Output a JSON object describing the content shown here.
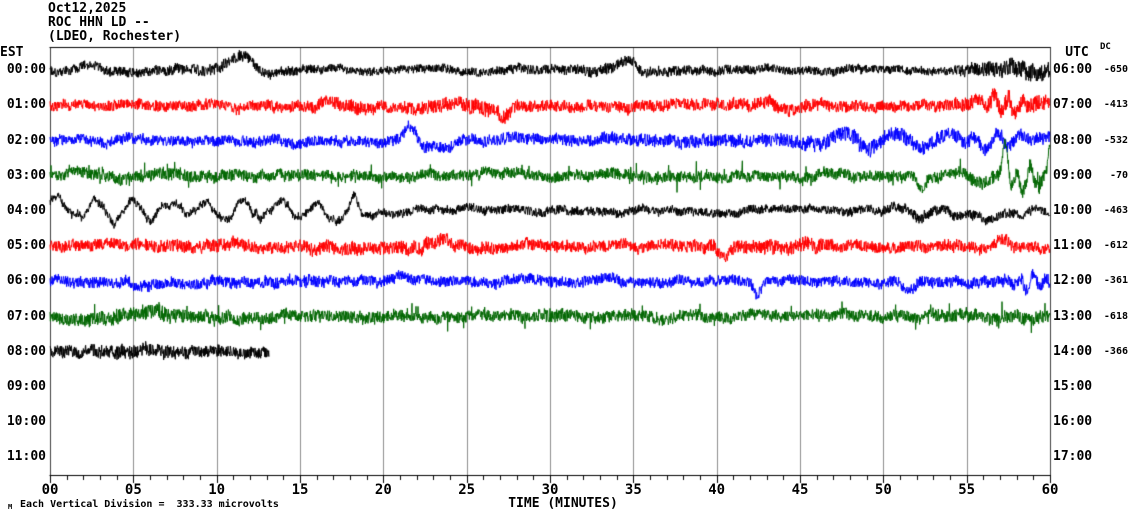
{
  "header": {
    "date": "Oct12,2025",
    "station": "ROC HHN LD --",
    "location": "(LDEO, Rochester)"
  },
  "axes": {
    "left_title": "EST",
    "right_title": "UTC",
    "dc_title": "DC",
    "x_title": "TIME (MINUTES)",
    "x_tick_labels": [
      "00",
      "05",
      "10",
      "15",
      "20",
      "25",
      "30",
      "35",
      "40",
      "45",
      "50",
      "55",
      "60"
    ]
  },
  "footer": {
    "scale_note": "Each Vertical Division =  333.33 microvolts",
    "watermark": "M"
  },
  "colors": {
    "black": "#000000",
    "red": "#ff0000",
    "blue": "#0000ff",
    "green": "#006600",
    "grid": "#8c8c8c",
    "frame": "#3c3c3c",
    "axis": "#000000"
  },
  "chart_data": {
    "type": "line",
    "subtype": "helicorder-seismogram",
    "title": "ROC HHN LD -- (LDEO, Rochester) Oct12,2025",
    "x_axis": {
      "label": "TIME (MINUTES)",
      "min": 0,
      "max": 60,
      "major_tick": 5,
      "minor_tick": 1
    },
    "vertical_division_microvolts": 333.33,
    "hour_rows": [
      {
        "est": "00:00",
        "utc": "06:00",
        "dc": "-650",
        "has_trace": true
      },
      {
        "est": "01:00",
        "utc": "07:00",
        "dc": "-413",
        "has_trace": true
      },
      {
        "est": "02:00",
        "utc": "08:00",
        "dc": "-532",
        "has_trace": true
      },
      {
        "est": "03:00",
        "utc": "09:00",
        "dc": "-70",
        "has_trace": true
      },
      {
        "est": "04:00",
        "utc": "10:00",
        "dc": "-463",
        "has_trace": true
      },
      {
        "est": "05:00",
        "utc": "11:00",
        "dc": "-612",
        "has_trace": true
      },
      {
        "est": "06:00",
        "utc": "12:00",
        "dc": "-361",
        "has_trace": true
      },
      {
        "est": "07:00",
        "utc": "13:00",
        "dc": "-618",
        "has_trace": true
      },
      {
        "est": "08:00",
        "utc": "14:00",
        "dc": "-366",
        "has_trace": true
      },
      {
        "est": "09:00",
        "utc": "15:00",
        "dc": "",
        "has_trace": false
      },
      {
        "est": "10:00",
        "utc": "16:00",
        "dc": "",
        "has_trace": false
      },
      {
        "est": "11:00",
        "utc": "17:00",
        "dc": "",
        "has_trace": false
      }
    ],
    "traces": [
      {
        "row": 0,
        "color": "black",
        "start_min": 0,
        "end_min": 60,
        "seed": 101,
        "envelope": [
          [
            0,
            4.5
          ],
          [
            8,
            5
          ],
          [
            10,
            6
          ],
          [
            12.5,
            5
          ],
          [
            20,
            4
          ],
          [
            30,
            4.5
          ],
          [
            33,
            5.5
          ],
          [
            36,
            5
          ],
          [
            45,
            4
          ],
          [
            54,
            4.5
          ],
          [
            56.5,
            8
          ],
          [
            58,
            9
          ],
          [
            60,
            8
          ]
        ],
        "events": [
          {
            "type": "pulse",
            "min": 2.3,
            "amp": 6,
            "width": 0.8
          },
          {
            "type": "pulse",
            "min": 11.4,
            "amp": 15,
            "width": 0.9
          },
          {
            "type": "pulse",
            "min": 12.8,
            "amp": -6,
            "width": 0.6
          },
          {
            "type": "pulse",
            "min": 34.6,
            "amp": 12,
            "width": 0.8
          },
          {
            "type": "pulse",
            "min": 35.6,
            "amp": -5,
            "width": 0.5
          },
          {
            "type": "pulse",
            "min": 57.6,
            "amp": 6,
            "width": 0.8
          }
        ]
      },
      {
        "row": 1,
        "color": "red",
        "start_min": 0,
        "end_min": 60,
        "seed": 202,
        "envelope": [
          [
            0,
            5
          ],
          [
            14,
            5.5
          ],
          [
            17,
            6.5
          ],
          [
            21,
            6
          ],
          [
            24,
            6.5
          ],
          [
            26.5,
            7.5
          ],
          [
            28,
            6
          ],
          [
            33,
            5.5
          ],
          [
            40,
            5.5
          ],
          [
            43,
            6.5
          ],
          [
            47,
            6
          ],
          [
            52,
            5
          ],
          [
            55.5,
            7.5
          ],
          [
            57.5,
            8.5
          ],
          [
            60,
            7.5
          ]
        ],
        "events": [
          {
            "type": "pulse",
            "min": 16.8,
            "amp": 7,
            "width": 0.7
          },
          {
            "type": "pulse",
            "min": 27.3,
            "amp": -11,
            "width": 0.5
          },
          {
            "type": "pulse",
            "min": 44.5,
            "amp": -6,
            "width": 0.6
          },
          {
            "type": "osc",
            "min": 57.3,
            "amp": 9,
            "width": 1.3,
            "period": 0.9
          }
        ]
      },
      {
        "row": 2,
        "color": "blue",
        "start_min": 0,
        "end_min": 60,
        "seed": 303,
        "envelope": [
          [
            0,
            5
          ],
          [
            15,
            5
          ],
          [
            20,
            5.5
          ],
          [
            25,
            5.5
          ],
          [
            32,
            5.5
          ],
          [
            36,
            6.5
          ],
          [
            40,
            6
          ],
          [
            44,
            6.5
          ],
          [
            48,
            7.5
          ],
          [
            52,
            7
          ],
          [
            56,
            6.5
          ],
          [
            60,
            6
          ]
        ],
        "events": [
          {
            "type": "pulse",
            "min": 21.6,
            "amp": 16,
            "width": 0.45
          },
          {
            "type": "pulse",
            "min": 22.6,
            "amp": -5,
            "width": 0.5
          },
          {
            "type": "pulse",
            "min": 23.8,
            "amp": -7,
            "width": 0.7
          },
          {
            "type": "osc",
            "min": 50,
            "amp": 8,
            "width": 4.5,
            "period": 3.2
          },
          {
            "type": "osc",
            "min": 56.5,
            "amp": 9,
            "width": 1.8,
            "period": 1.4
          }
        ]
      },
      {
        "row": 3,
        "color": "green",
        "start_min": 0,
        "end_min": 60,
        "seed": 404,
        "spiky": true,
        "envelope": [
          [
            0,
            5
          ],
          [
            3,
            6
          ],
          [
            7,
            6.5
          ],
          [
            12,
            5.5
          ],
          [
            25,
            5
          ],
          [
            35,
            5.5
          ],
          [
            45,
            5.5
          ],
          [
            52,
            5.5
          ],
          [
            56,
            6
          ],
          [
            58,
            7
          ],
          [
            60,
            7
          ]
        ],
        "events": [
          {
            "type": "pulse",
            "min": 52.3,
            "amp": -12,
            "width": 0.35
          },
          {
            "type": "pulse",
            "min": 55.8,
            "amp": -8,
            "width": 0.6
          },
          {
            "type": "pulse",
            "min": 57.35,
            "amp": 38,
            "width": 0.22
          },
          {
            "type": "pulse",
            "min": 57.8,
            "amp": -16,
            "width": 0.3
          },
          {
            "type": "osc",
            "min": 58.6,
            "amp": 14,
            "width": 1.1,
            "period": 0.9
          },
          {
            "type": "pulse",
            "min": 59.95,
            "amp": 30,
            "width": 0.12
          }
        ]
      },
      {
        "row": 4,
        "color": "black",
        "start_min": 0,
        "end_min": 60,
        "seed": 505,
        "envelope": [
          [
            0,
            3.5
          ],
          [
            19,
            3.5
          ],
          [
            21,
            4
          ],
          [
            30,
            4.5
          ],
          [
            40,
            4
          ],
          [
            50,
            4
          ],
          [
            53,
            5
          ],
          [
            60,
            4
          ]
        ],
        "wander": [
          [
            0,
            11
          ],
          [
            18,
            10
          ],
          [
            20,
            4.5
          ],
          [
            45,
            4.5
          ],
          [
            50,
            7
          ],
          [
            55,
            7
          ],
          [
            60,
            5
          ]
        ],
        "events": [
          {
            "type": "sine",
            "start": 0,
            "end": 19.2,
            "amp": 9,
            "period": 2.2,
            "fade": 1.5
          },
          {
            "type": "pulse",
            "min": 0.3,
            "amp": 14,
            "width": 0.5
          },
          {
            "type": "pulse",
            "min": 18.3,
            "amp": 15,
            "width": 0.25
          },
          {
            "type": "osc",
            "min": 52.8,
            "amp": 8,
            "width": 1.8,
            "period": 2.6
          },
          {
            "type": "pulse",
            "min": 56.2,
            "amp": -9,
            "width": 0.9
          }
        ]
      },
      {
        "row": 5,
        "color": "red",
        "start_min": 0,
        "end_min": 60,
        "seed": 606,
        "envelope": [
          [
            0,
            5.5
          ],
          [
            5,
            6
          ],
          [
            10,
            6.5
          ],
          [
            13,
            5.5
          ],
          [
            16,
            7
          ],
          [
            19,
            6
          ],
          [
            22,
            7
          ],
          [
            26,
            6
          ],
          [
            31,
            5.5
          ],
          [
            36,
            5.5
          ],
          [
            41,
            6.5
          ],
          [
            44,
            7
          ],
          [
            47,
            6
          ],
          [
            51,
            5.5
          ],
          [
            55,
            6
          ],
          [
            58,
            5.5
          ],
          [
            60,
            6
          ]
        ],
        "events": [
          {
            "type": "pulse",
            "min": 23.5,
            "amp": 6,
            "width": 0.6
          },
          {
            "type": "pulse",
            "min": 40.4,
            "amp": -9,
            "width": 0.4
          },
          {
            "type": "pulse",
            "min": 57.2,
            "amp": 5,
            "width": 0.5
          }
        ]
      },
      {
        "row": 6,
        "color": "blue",
        "start_min": 0,
        "end_min": 60,
        "seed": 707,
        "envelope": [
          [
            0,
            5
          ],
          [
            4,
            6
          ],
          [
            9,
            5
          ],
          [
            14,
            6
          ],
          [
            19,
            5.5
          ],
          [
            25,
            5
          ],
          [
            31,
            5.5
          ],
          [
            37,
            5
          ],
          [
            43,
            5
          ],
          [
            49,
            5
          ],
          [
            54,
            5.5
          ],
          [
            58,
            6
          ],
          [
            60,
            6
          ]
        ],
        "events": [
          {
            "type": "pulse",
            "min": 21,
            "amp": 6,
            "width": 0.8
          },
          {
            "type": "pulse",
            "min": 42.4,
            "amp": -11,
            "width": 0.3
          },
          {
            "type": "pulse",
            "min": 51.5,
            "amp": -7,
            "width": 0.5
          },
          {
            "type": "osc",
            "min": 58.8,
            "amp": 7,
            "width": 1.0,
            "period": 0.8
          }
        ]
      },
      {
        "row": 7,
        "color": "green",
        "start_min": 0,
        "end_min": 60,
        "seed": 808,
        "spiky": true,
        "envelope": [
          [
            0,
            5.5
          ],
          [
            3,
            7
          ],
          [
            6,
            8
          ],
          [
            9,
            6.5
          ],
          [
            13,
            5.5
          ],
          [
            18,
            6
          ],
          [
            25,
            5.5
          ],
          [
            32,
            6
          ],
          [
            40,
            5.5
          ],
          [
            48,
            5.5
          ],
          [
            53,
            6
          ],
          [
            57,
            6.5
          ],
          [
            60,
            6
          ]
        ],
        "events": [
          {
            "type": "pulse",
            "min": 6,
            "amp": 6,
            "width": 1.2
          }
        ]
      },
      {
        "row": 8,
        "color": "black",
        "start_min": 0,
        "end_min": 13.15,
        "seed": 909,
        "envelope": [
          [
            0,
            5.5
          ],
          [
            3,
            6.5
          ],
          [
            5,
            7
          ],
          [
            8,
            6.5
          ],
          [
            11,
            6
          ],
          [
            13.15,
            5.5
          ]
        ],
        "events": []
      }
    ]
  }
}
